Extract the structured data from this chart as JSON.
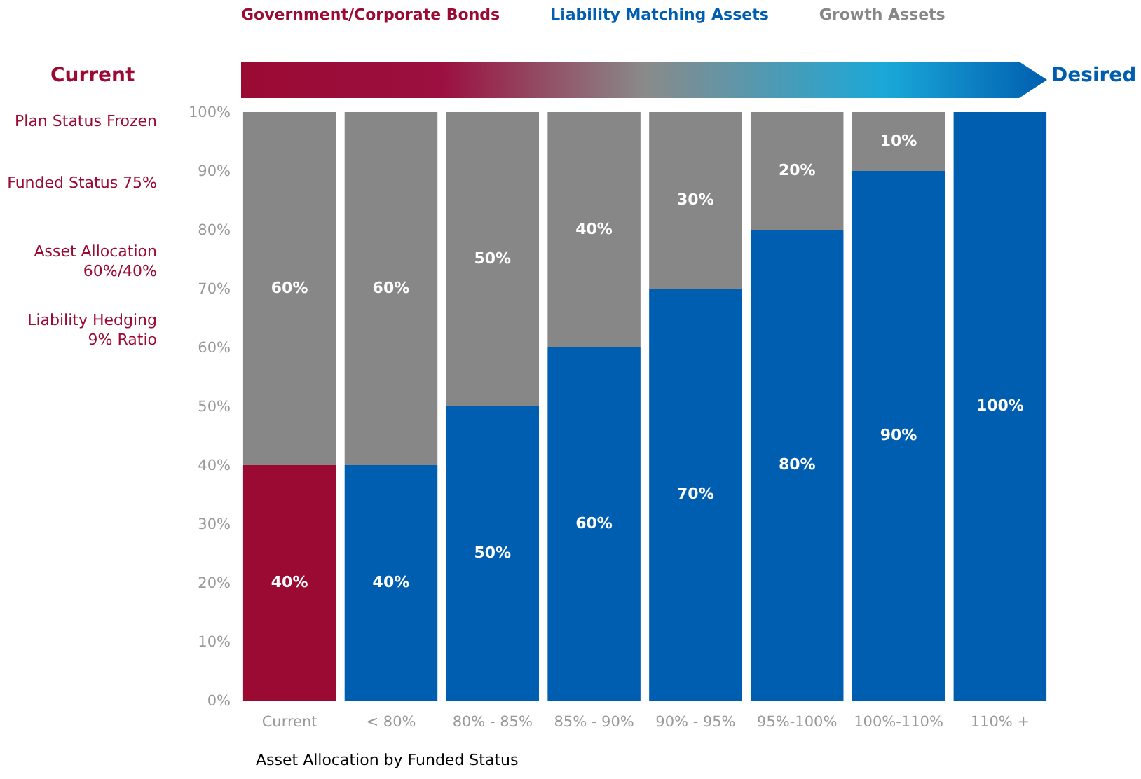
{
  "chart_data": {
    "type": "bar",
    "stacked": true,
    "legend": "top",
    "grid": false,
    "xlabel": "Asset Allocation by Funded Status",
    "annotations": [
      "Current",
      "Desired",
      "Plan Status Frozen",
      "Funded Status 75%",
      "Asset Allocation 60%/40%",
      "Liability Hedging 9% Ratio"
    ],
    "categories": [
      "Current",
      "< 80%",
      "80% - 85%",
      "85% - 90%",
      "90% - 95%",
      "95%-100%",
      "100%-110%",
      "110% +"
    ],
    "ylim": [
      0,
      100
    ],
    "yticks": [
      {
        "value": 0,
        "label": "0%"
      },
      {
        "value": 10,
        "label": "10%"
      },
      {
        "value": 20,
        "label": "20%"
      },
      {
        "value": 30,
        "label": "30%"
      },
      {
        "value": 40,
        "label": "40%"
      },
      {
        "value": 50,
        "label": "50%"
      },
      {
        "value": 60,
        "label": "60%"
      },
      {
        "value": 70,
        "label": "70%"
      },
      {
        "value": 80,
        "label": "80%"
      },
      {
        "value": 90,
        "label": "90%"
      },
      {
        "value": 100,
        "label": "100%"
      }
    ],
    "series": [
      {
        "name": "Government/Corporate Bonds",
        "color": "#9b0a33",
        "values": [
          40,
          null,
          null,
          null,
          null,
          null,
          null,
          null
        ],
        "value_labels": [
          "40%",
          null,
          null,
          null,
          null,
          null,
          null,
          null
        ]
      },
      {
        "name": "Liability Matching Assets",
        "color": "#005eb0",
        "values": [
          null,
          40,
          50,
          60,
          70,
          80,
          90,
          100
        ],
        "value_labels": [
          null,
          "40%",
          "50%",
          "60%",
          "70%",
          "80%",
          "90%",
          "100%"
        ]
      },
      {
        "name": "Growth Assets",
        "color": "#878787",
        "values": [
          60,
          60,
          50,
          40,
          30,
          20,
          10,
          null
        ],
        "value_labels": [
          "60%",
          "60%",
          "50%",
          "40%",
          "30%",
          "20%",
          "10%",
          null
        ]
      }
    ]
  }
}
